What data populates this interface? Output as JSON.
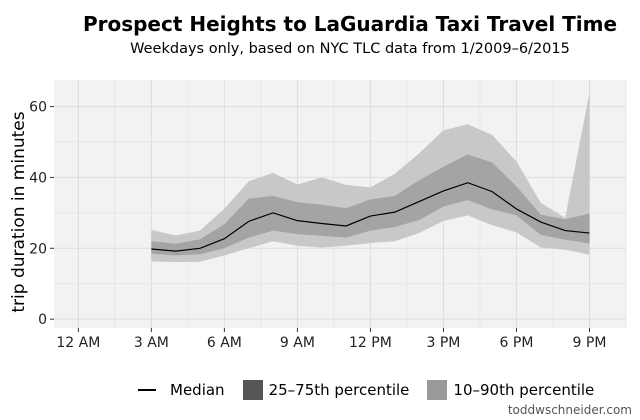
{
  "title": "Prospect Heights to LaGuardia Taxi Travel Time",
  "subtitle": "Weekdays only, based on NYC TLC data from 1/2009–6/2015",
  "credit": "toddwschneider.com",
  "legend": {
    "median": "Median",
    "iqr": "25–75th percentile",
    "p10_90": "10–90th percentile"
  },
  "colors": {
    "panel": "#f2f2f2",
    "grid": "#dddddd",
    "band_outer": "#c8c8c8",
    "band_inner": "#a4a4a4",
    "median": "#000000"
  },
  "chart_data": {
    "type": "area",
    "title": "Prospect Heights to LaGuardia Taxi Travel Time",
    "subtitle": "Weekdays only, based on NYC TLC data from 1/2009–6/2015",
    "xlabel": "",
    "ylabel": "trip duration in minutes",
    "x_ticks": [
      0,
      3,
      6,
      9,
      12,
      15,
      18,
      21
    ],
    "x_tick_labels": [
      "12 AM",
      "3 AM",
      "6 AM",
      "9 AM",
      "12 PM",
      "3 PM",
      "6 PM",
      "9 PM"
    ],
    "y_ticks": [
      0,
      20,
      40,
      60
    ],
    "xlim": [
      -1.0,
      22.5
    ],
    "ylim": [
      -2.5,
      67.5
    ],
    "grid": true,
    "legend_position": "bottom",
    "x": [
      3,
      4,
      5,
      6,
      7,
      8,
      9,
      10,
      11,
      12,
      13,
      14,
      15,
      16,
      17,
      18,
      19,
      20,
      21
    ],
    "series": [
      {
        "name": "Median",
        "values": [
          19.8,
          19.2,
          20.0,
          22.7,
          27.6,
          30.0,
          27.8,
          27.0,
          26.3,
          29.1,
          30.2,
          33.2,
          36.2,
          38.5,
          36.0,
          31.1,
          27.4,
          25.0,
          24.3
        ]
      },
      {
        "name": "25th",
        "values": [
          18.5,
          18.0,
          18.3,
          20.0,
          23.0,
          25.0,
          24.0,
          23.5,
          23.0,
          25.0,
          26.0,
          28.0,
          31.8,
          33.6,
          31.0,
          29.3,
          23.8,
          22.4,
          21.4
        ]
      },
      {
        "name": "75th",
        "values": [
          22.0,
          21.3,
          22.5,
          26.8,
          34.0,
          34.8,
          33.0,
          32.3,
          31.3,
          33.8,
          34.8,
          39.2,
          43.0,
          46.5,
          44.2,
          37.5,
          29.5,
          28.2,
          29.8
        ]
      },
      {
        "name": "10th",
        "values": [
          16.3,
          16.1,
          16.2,
          18.0,
          20.0,
          22.0,
          20.7,
          20.2,
          20.7,
          21.5,
          22.0,
          24.3,
          27.7,
          29.3,
          26.5,
          24.5,
          20.2,
          19.6,
          18.2
        ]
      },
      {
        "name": "90th",
        "values": [
          25.2,
          23.6,
          25.0,
          31.2,
          38.9,
          41.3,
          38.0,
          40.0,
          37.9,
          37.2,
          41.0,
          46.8,
          53.3,
          55.0,
          52.0,
          44.5,
          32.8,
          28.6,
          64.0
        ]
      }
    ]
  }
}
